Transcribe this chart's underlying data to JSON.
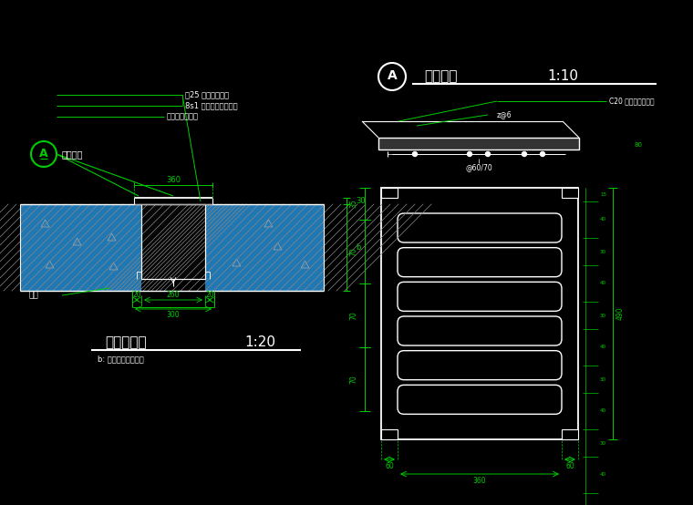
{
  "bg_color": "#000000",
  "wc": "#ffffff",
  "lc": "#00cc00",
  "annotation1": "厕25 水泥砂浆抹平",
  "annotation2": "8s1 玻璃纤维布防水层",
  "annotation3": "混凝土防水底板",
  "annotation4": "C20 细石混凝土盖筒",
  "label_A": "明沟盖板",
  "label_bottom": "底板",
  "title_left": "排水沟大样",
  "scale_left": "1:20",
  "subtitle_left": "b: 根据平面图标高定",
  "title_right": "明沟盖板",
  "scale_right": "1:10"
}
